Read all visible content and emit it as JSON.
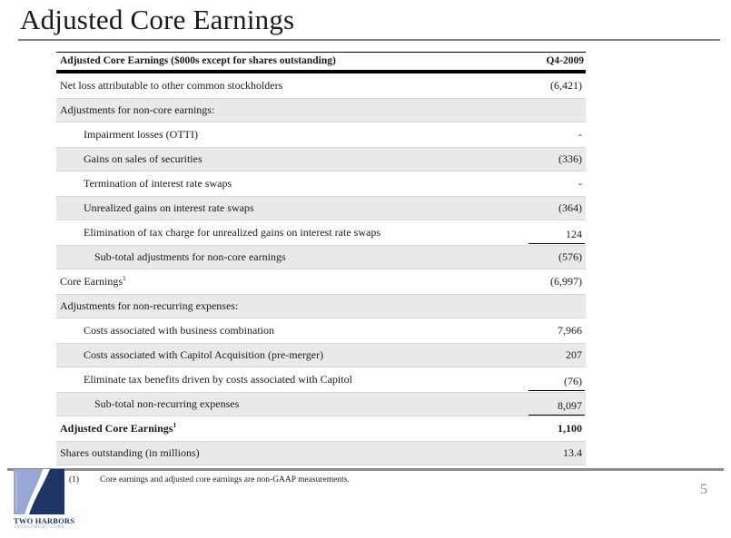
{
  "slide": {
    "title": "Adjusted Core Earnings",
    "page_number": "5"
  },
  "table": {
    "header": {
      "label": "Adjusted Core Earnings ($000s except for shares outstanding)",
      "period": "Q4-2009"
    },
    "rows": [
      {
        "label": "Net loss attributable to other common stockholders",
        "sup": "",
        "value": "(6,421)",
        "indent": 0,
        "shaded": false,
        "bold": false,
        "underline": false
      },
      {
        "label": "Adjustments for non-core earnings:",
        "sup": "",
        "value": "",
        "indent": 0,
        "shaded": true,
        "bold": false,
        "underline": false
      },
      {
        "label": "Impairment losses (OTTI)",
        "sup": "",
        "value": "-",
        "indent": 1,
        "shaded": false,
        "bold": false,
        "underline": false
      },
      {
        "label": "Gains on sales of securities",
        "sup": "",
        "value": "(336)",
        "indent": 1,
        "shaded": true,
        "bold": false,
        "underline": false
      },
      {
        "label": "Termination of interest rate swaps",
        "sup": "",
        "value": "-",
        "indent": 1,
        "shaded": false,
        "bold": false,
        "underline": false
      },
      {
        "label": "Unrealized gains on interest rate swaps",
        "sup": "",
        "value": "(364)",
        "indent": 1,
        "shaded": true,
        "bold": false,
        "underline": false
      },
      {
        "label": "Elimination of tax charge for unrealized gains on interest rate swaps",
        "sup": "",
        "value": "124",
        "indent": 1,
        "shaded": false,
        "bold": false,
        "underline": true
      },
      {
        "label": "Sub-total adjustments for non-core earnings",
        "sup": "",
        "value": "(576)",
        "indent": 2,
        "shaded": true,
        "bold": false,
        "underline": false
      },
      {
        "label": "Core Earnings",
        "sup": "1",
        "value": "(6,997)",
        "indent": 0,
        "shaded": false,
        "bold": false,
        "underline": false
      },
      {
        "label": "Adjustments for non-recurring expenses:",
        "sup": "",
        "value": "",
        "indent": 0,
        "shaded": true,
        "bold": false,
        "underline": false
      },
      {
        "label": "Costs associated with business combination",
        "sup": "",
        "value": "7,966",
        "indent": 1,
        "shaded": false,
        "bold": false,
        "underline": false
      },
      {
        "label": "Costs associated with Capitol Acquisition (pre-merger)",
        "sup": "",
        "value": "207",
        "indent": 1,
        "shaded": true,
        "bold": false,
        "underline": false
      },
      {
        "label": "Eliminate tax benefits driven by costs associated with Capitol",
        "sup": "",
        "value": "(76)",
        "indent": 1,
        "shaded": false,
        "bold": false,
        "underline": true
      },
      {
        "label": "Sub-total non-recurring expenses",
        "sup": "",
        "value": "8,097",
        "indent": 2,
        "shaded": true,
        "bold": false,
        "underline": true
      },
      {
        "label": "Adjusted Core Earnings",
        "sup": "1",
        "value": "1,100",
        "indent": 0,
        "shaded": false,
        "bold": true,
        "underline": false
      },
      {
        "label": "Shares outstanding (in millions)",
        "sup": "",
        "value": "13.4",
        "indent": 0,
        "shaded": true,
        "bold": false,
        "underline": false
      }
    ]
  },
  "footnote": {
    "marker": "(1)",
    "text": "Core earnings and adjusted core earnings are non-GAAP measurements."
  },
  "logo": {
    "name": "TWO HARBORS",
    "tagline": "INVESTMENT CORP.",
    "colors": {
      "navy": "#1e3566",
      "light_blue": "#98a7d3"
    }
  }
}
